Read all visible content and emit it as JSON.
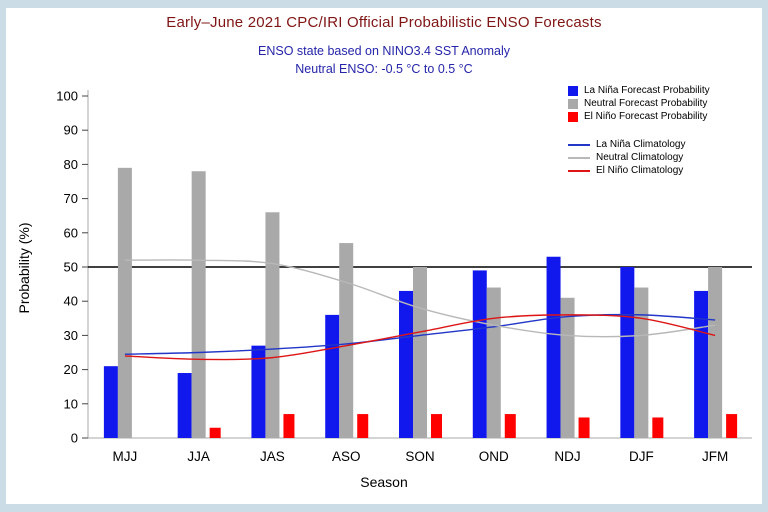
{
  "chart_data": {
    "type": "bar",
    "title": "Early–June 2021 CPC/IRI Official Probabilistic ENSO Forecasts",
    "subtitles": [
      "ENSO state based on NINO3.4 SST Anomaly",
      "Neutral ENSO: -0.5 °C to 0.5 °C"
    ],
    "xlabel": "Season",
    "ylabel": "Probability (%)",
    "ylim": [
      0,
      100
    ],
    "yticks": [
      0,
      10,
      20,
      30,
      40,
      50,
      60,
      70,
      80,
      90,
      100
    ],
    "reference_line": 50,
    "grid": false,
    "legend_position": "top-right",
    "categories": [
      "MJJ",
      "JJA",
      "JAS",
      "ASO",
      "SON",
      "OND",
      "NDJ",
      "DJF",
      "JFM"
    ],
    "bar_series": [
      {
        "name": "La Niña Forecast Probability",
        "color": "#1018ee",
        "values": [
          21,
          19,
          27,
          36,
          43,
          49,
          53,
          50,
          43
        ]
      },
      {
        "name": "Neutral Forecast Probability",
        "color": "#a9a9a9",
        "values": [
          79,
          78,
          66,
          57,
          50,
          44,
          41,
          44,
          50
        ]
      },
      {
        "name": "El Niño Forecast Probability",
        "color": "#ff0000",
        "values": [
          0,
          3,
          7,
          7,
          7,
          7,
          6,
          6,
          7
        ]
      }
    ],
    "line_series": [
      {
        "name": "La Niña Climatology",
        "color": "#2236c8",
        "values": [
          24.5,
          25,
          26,
          27.5,
          30,
          32.5,
          35.5,
          36,
          34.5
        ]
      },
      {
        "name": "Neutral Climatology",
        "color": "#b8b8b8",
        "values": [
          52,
          52,
          51,
          45.5,
          38,
          33,
          30,
          30,
          33
        ]
      },
      {
        "name": "El Niño Climatology",
        "color": "#dd1515",
        "values": [
          24,
          23,
          23.5,
          27,
          31,
          35,
          36,
          35,
          30
        ]
      }
    ],
    "colors": {
      "title": "#801515",
      "subtitle": "#2525aa",
      "reference_line": "#000000",
      "page_background": "#cbdce7"
    }
  }
}
